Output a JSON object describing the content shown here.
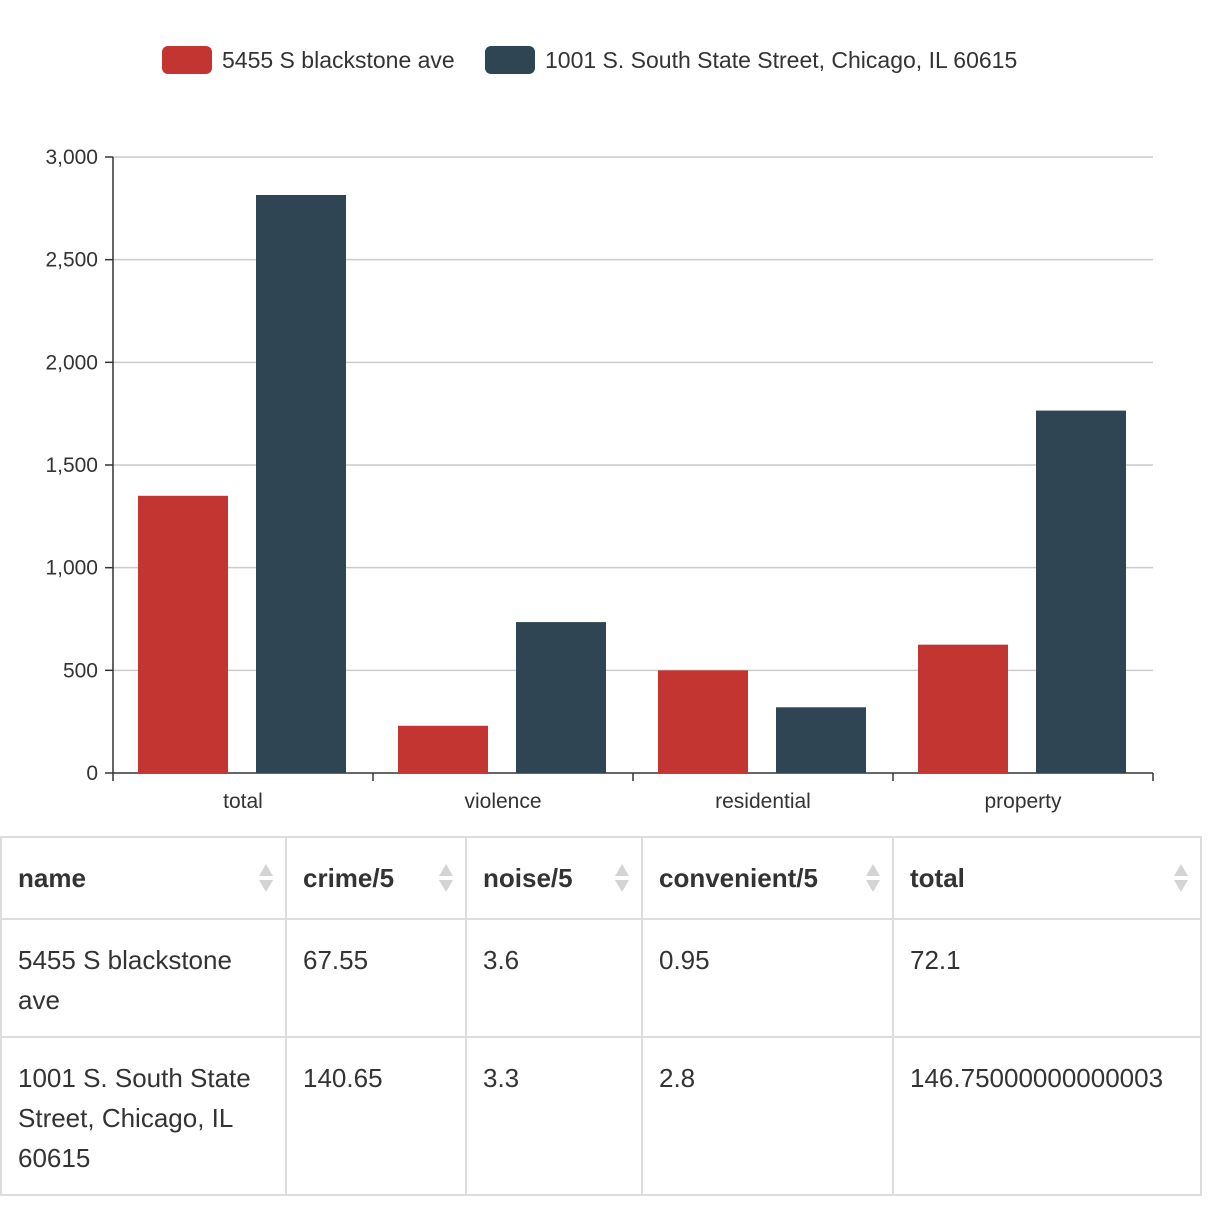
{
  "chart_data": {
    "type": "bar",
    "categories": [
      "total",
      "violence",
      "residential",
      "property"
    ],
    "series": [
      {
        "name": "5455 S blackstone ave",
        "color": "#c23531",
        "values": [
          1350,
          230,
          500,
          625
        ]
      },
      {
        "name": "1001 S. South State Street, Chicago, IL 60615",
        "color": "#2f4554",
        "values": [
          2815,
          735,
          320,
          1765
        ]
      }
    ],
    "ylim": [
      0,
      3000
    ],
    "yticks": [
      0,
      500,
      1000,
      1500,
      2000,
      2500,
      3000
    ],
    "ytick_labels": [
      "0",
      "500",
      "1,000",
      "1,500",
      "2,000",
      "2,500",
      "3,000"
    ],
    "grid": true,
    "legend_position": "top-center"
  },
  "table": {
    "headers": [
      "name",
      "crime/5",
      "noise/5",
      "convenient/5",
      "total"
    ],
    "rows": [
      [
        "5455 S blackstone ave",
        "67.55",
        "3.6",
        "0.95",
        "72.1"
      ],
      [
        "1001 S. South State Street, Chicago, IL 60615",
        "140.65",
        "3.3",
        "2.8",
        "146.75000000000003"
      ]
    ]
  }
}
